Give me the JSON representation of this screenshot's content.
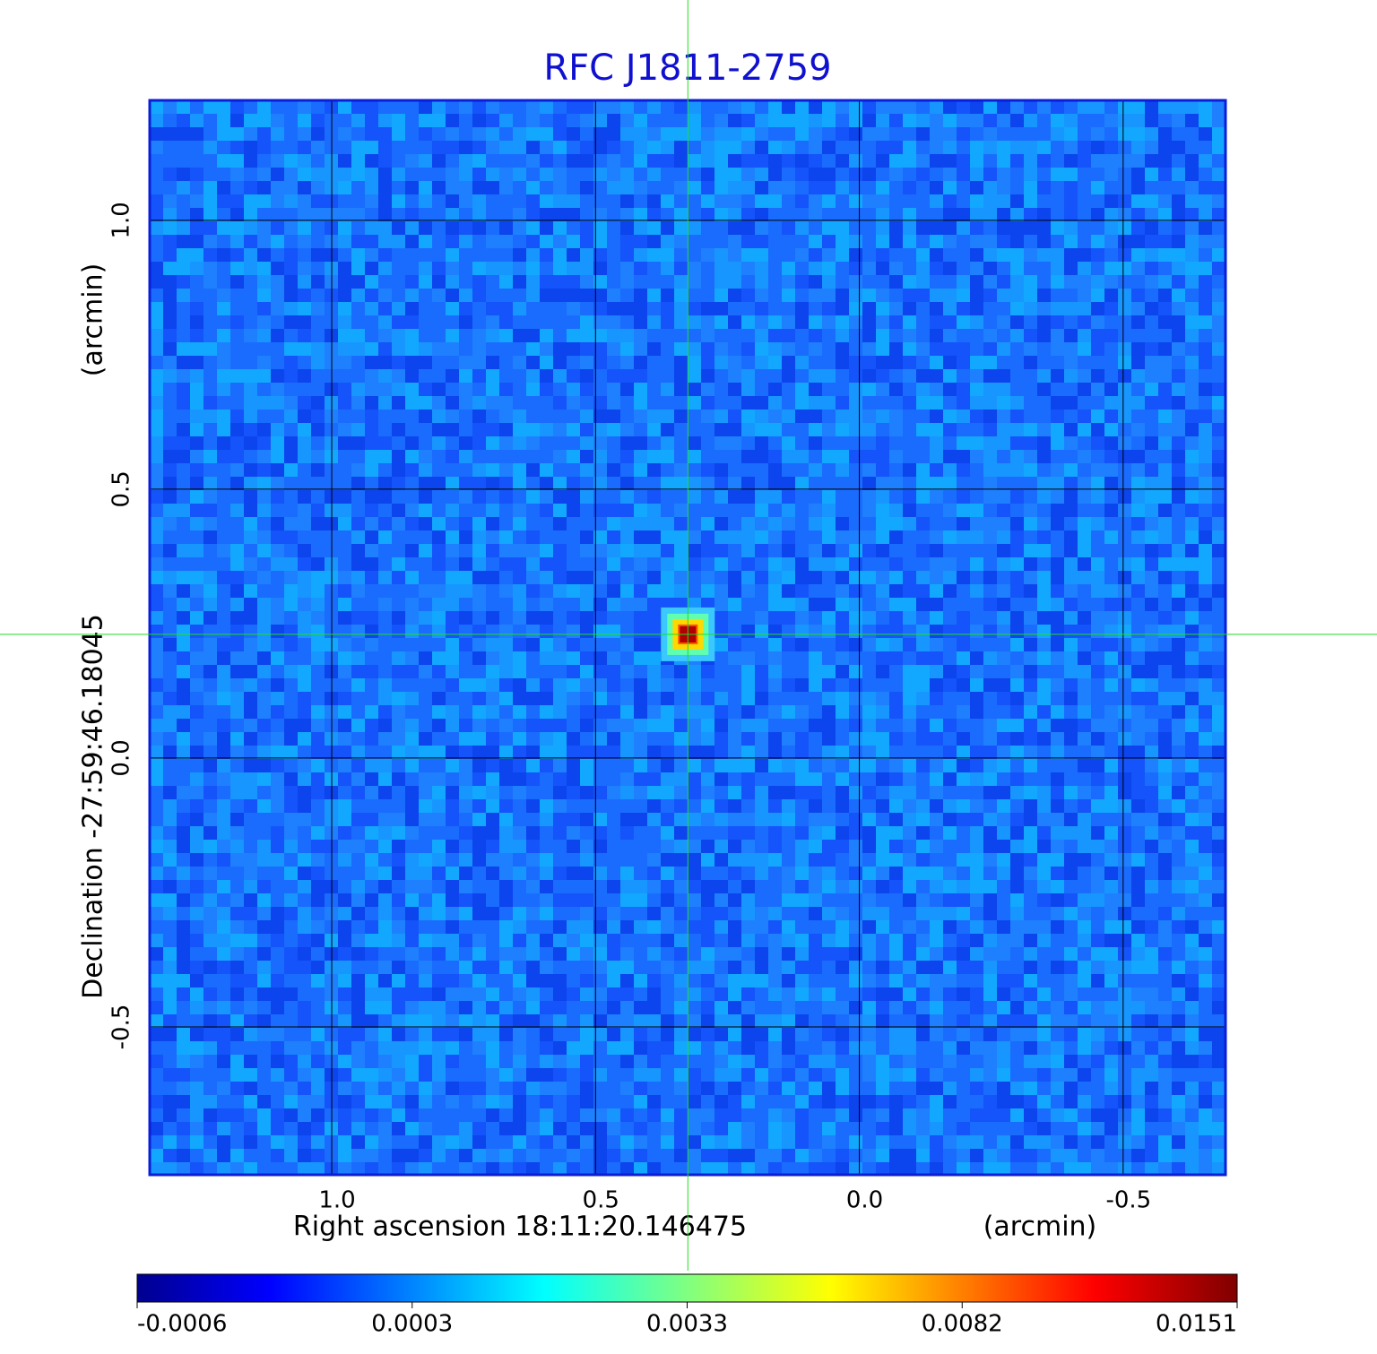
{
  "chart_data": {
    "type": "image",
    "title": "RFC J1811-2759",
    "xlabel": "Right ascension  18:11:20.146475",
    "xunit": "(arcmin)",
    "ylabel": "Declination  -27:59:46.18045",
    "yunit": "(arcmin)",
    "xlim": [
      1.345,
      -0.694
    ],
    "ylim": [
      -0.775,
      1.223
    ],
    "xticks": [
      {
        "value": 1,
        "label": "1.0"
      },
      0.5,
      {
        "value": 0,
        "label": "0.0"
      },
      -0.5
    ],
    "yticks": [
      {
        "value": -0.5,
        "label": "-0.5"
      },
      {
        "value": 0,
        "label": "0.0"
      },
      0.5,
      {
        "value": 1,
        "label": "1.0"
      }
    ],
    "grid": true,
    "colormap": "jet",
    "colorbar_ticks": [
      -0.0006,
      0.0003,
      0.0033,
      0.0082,
      0.0151
    ],
    "source": {
      "x": 0.325,
      "y": 0.23,
      "peak": 0.0151
    },
    "crosshair_color": "#22dd22",
    "frame_color": "#0a1ed8"
  }
}
